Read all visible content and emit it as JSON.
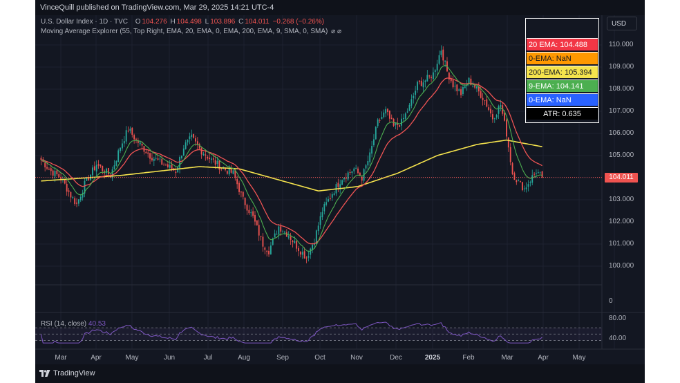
{
  "header": {
    "publisher_line": "VinceQuill published on TradingView.com, Mar 29, 2025 14:21 UTC-4"
  },
  "legend": {
    "symbol": "U.S. Dollar Index · 1D · TVC",
    "open_label": "O",
    "open": "104.276",
    "high_label": "H",
    "high": "104.498",
    "low_label": "L",
    "low": "103.896",
    "close_label": "C",
    "close": "104.011",
    "change": "−0.268 (−0.26%)",
    "indicator": "Moving Average Explorer (55, Top Right, EMA, 20, EMA, 0, EMA, 200, EMA, 9, SMA, 0, SMA)",
    "icons": "⌀ ⌀"
  },
  "currency_button": "USD",
  "last_price_label": "104.011",
  "ma_table": {
    "rows": [
      {
        "text": "20 EMA: 104.488",
        "bg": "#f23645",
        "fg": "#ffffff"
      },
      {
        "text": "0-EMA: NaN",
        "bg": "#ff9800",
        "fg": "#131722"
      },
      {
        "text": "200-EMA: 105.394",
        "bg": "#f5e34d",
        "fg": "#131722"
      },
      {
        "text": "9-EMA: 104.141",
        "bg": "#4caf50",
        "fg": "#ffffff"
      },
      {
        "text": "0-EMA: NaN",
        "bg": "#2962ff",
        "fg": "#ffffff"
      },
      {
        "text": "ATR: 0.635",
        "bg": "#000000",
        "fg": "#ffffff"
      }
    ]
  },
  "rsi": {
    "label": "RSI (14, close)",
    "value": "40.53",
    "ticks": [
      "80.00",
      "40.00"
    ]
  },
  "footer": {
    "brand": "TradingView"
  },
  "colors": {
    "up": "#26a69a",
    "down": "#ef5350",
    "ema20": "#f05454",
    "ema9": "#4caf50",
    "ema200": "#f5e34d",
    "rsi": "#7e57c2"
  },
  "chart_data": {
    "type": "candlestick",
    "ylim": [
      99.6,
      110.6
    ],
    "price_ticks": [
      "110.000",
      "109.000",
      "108.000",
      "107.000",
      "106.000",
      "105.000",
      "104.000",
      "103.000",
      "102.000",
      "101.000",
      "100.000"
    ],
    "extra_tick": "0",
    "time_labels": [
      "Mar",
      "Apr",
      "May",
      "Jun",
      "Jul",
      "Aug",
      "Sep",
      "Oct",
      "Nov",
      "Dec",
      "2025",
      "Feb",
      "Mar",
      "Apr",
      "May"
    ],
    "bold_time_label": "2025",
    "close_anchors": [
      [
        0,
        104.8
      ],
      [
        5,
        104.3
      ],
      [
        10,
        104.0
      ],
      [
        15,
        103.2
      ],
      [
        18,
        102.8
      ],
      [
        22,
        103.7
      ],
      [
        28,
        104.6
      ],
      [
        35,
        104.1
      ],
      [
        40,
        105.4
      ],
      [
        44,
        106.2
      ],
      [
        48,
        105.7
      ],
      [
        55,
        105.0
      ],
      [
        60,
        104.7
      ],
      [
        68,
        104.3
      ],
      [
        72,
        105.4
      ],
      [
        76,
        105.8
      ],
      [
        80,
        105.3
      ],
      [
        86,
        104.8
      ],
      [
        92,
        104.4
      ],
      [
        97,
        104.2
      ],
      [
        102,
        103.0
      ],
      [
        107,
        102.2
      ],
      [
        112,
        101.0
      ],
      [
        115,
        100.7
      ],
      [
        120,
        101.8
      ],
      [
        125,
        101.4
      ],
      [
        130,
        100.8
      ],
      [
        134,
        100.4
      ],
      [
        138,
        101.2
      ],
      [
        142,
        102.5
      ],
      [
        147,
        103.3
      ],
      [
        152,
        104.0
      ],
      [
        158,
        104.4
      ],
      [
        162,
        104.0
      ],
      [
        166,
        105.0
      ],
      [
        170,
        106.5
      ],
      [
        174,
        107.0
      ],
      [
        178,
        106.3
      ],
      [
        182,
        106.5
      ],
      [
        186,
        107.2
      ],
      [
        190,
        108.2
      ],
      [
        194,
        108.4
      ],
      [
        198,
        108.7
      ],
      [
        202,
        109.8
      ],
      [
        205,
        108.8
      ],
      [
        208,
        108.2
      ],
      [
        212,
        107.8
      ],
      [
        216,
        108.4
      ],
      [
        220,
        108.0
      ],
      [
        224,
        107.5
      ],
      [
        228,
        106.7
      ],
      [
        232,
        107.3
      ],
      [
        235,
        106.0
      ],
      [
        238,
        104.2
      ],
      [
        241,
        103.8
      ],
      [
        244,
        103.5
      ],
      [
        247,
        103.9
      ],
      [
        250,
        104.3
      ],
      [
        253,
        104.0
      ]
    ],
    "ema200_anchors": [
      [
        0,
        103.85
      ],
      [
        40,
        104.1
      ],
      [
        80,
        104.5
      ],
      [
        100,
        104.4
      ],
      [
        120,
        103.9
      ],
      [
        140,
        103.4
      ],
      [
        160,
        103.6
      ],
      [
        180,
        104.2
      ],
      [
        200,
        105.0
      ],
      [
        220,
        105.5
      ],
      [
        235,
        105.7
      ],
      [
        253,
        105.4
      ]
    ],
    "bar_count": 254,
    "rsi_range": [
      20,
      90
    ]
  }
}
